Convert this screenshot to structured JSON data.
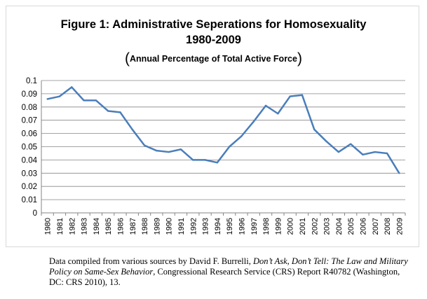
{
  "chart_data": {
    "type": "line",
    "title_line1": "Figure 1: Administrative Seperations for Homosexuality",
    "title_line2": "1980-2009",
    "subtitle_open": "(",
    "subtitle": "Annual Percentage of Total Active Force",
    "subtitle_close": ")",
    "xlabel": "",
    "ylabel": "",
    "x": [
      "1980",
      "1981",
      "1982",
      "1983",
      "1984",
      "1985",
      "1986",
      "1987",
      "1988",
      "1989",
      "1990",
      "1991",
      "1992",
      "1993",
      "1994",
      "1995",
      "1996",
      "1997",
      "1998",
      "1999",
      "2000",
      "2001",
      "2002",
      "2003",
      "2004",
      "2005",
      "2006",
      "2007",
      "2008",
      "2009"
    ],
    "series": [
      {
        "values": [
          0.086,
          0.088,
          0.095,
          0.085,
          0.085,
          0.077,
          0.076,
          0.063,
          0.051,
          0.047,
          0.046,
          0.048,
          0.04,
          0.04,
          0.038,
          0.05,
          0.058,
          0.069,
          0.081,
          0.075,
          0.088,
          0.089,
          0.063,
          0.054,
          0.046,
          0.052,
          0.044,
          0.046,
          0.045,
          0.03
        ]
      }
    ],
    "yticks": [
      "0",
      "0.01",
      "0.02",
      "0.03",
      "0.04",
      "0.05",
      "0.06",
      "0.07",
      "0.08",
      "0.09",
      "0.1"
    ],
    "ylim": [
      0,
      0.1
    ],
    "grid": "horizontal",
    "legend": "none",
    "line_color": "#4a7ebb",
    "grid_color": "#868686"
  },
  "caption": {
    "part1": "Data compiled from various sources by David F. Burrelli, ",
    "part2_italic": "Don’t Ask, Don’t Tell: The Law and Military Policy on Same-Sex Behavior",
    "part3": ", Congressional Research Service (CRS) Report R40782 (Washington, DC: CRS 2010), 13."
  }
}
